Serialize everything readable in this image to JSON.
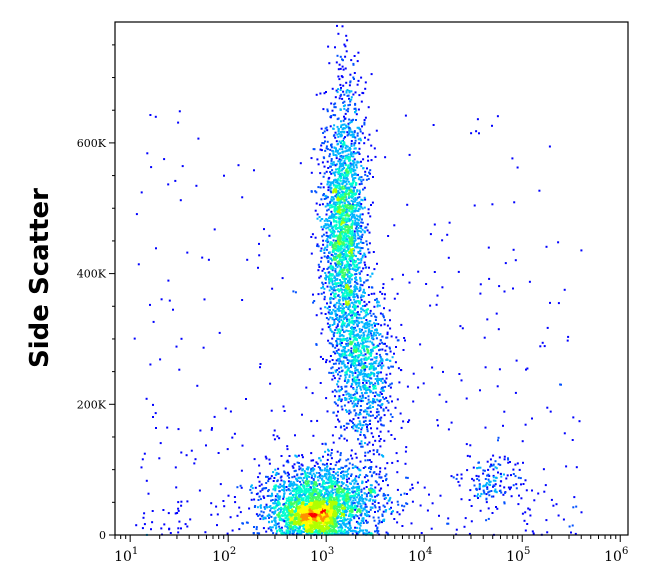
{
  "chart_data": {
    "type": "scatter",
    "title": "",
    "xlabel": "",
    "ylabel": "Side Scatter",
    "x_scale": "log",
    "xlim": [
      7,
      1200000
    ],
    "ylim": [
      0,
      785000
    ],
    "grid": false,
    "legend": "none",
    "x_ticks": [
      {
        "value": 10,
        "label": "10",
        "exp": "1"
      },
      {
        "value": 100,
        "label": "10",
        "exp": "2"
      },
      {
        "value": 1000,
        "label": "10",
        "exp": "3"
      },
      {
        "value": 10000,
        "label": "10",
        "exp": "4"
      },
      {
        "value": 100000,
        "label": "10",
        "exp": "5"
      },
      {
        "value": 1000000,
        "label": "10",
        "exp": "6"
      }
    ],
    "y_ticks": [
      {
        "value": 0,
        "label": "0"
      },
      {
        "value": 200000,
        "label": "200K"
      },
      {
        "value": 400000,
        "label": "400K"
      },
      {
        "value": 600000,
        "label": "600K"
      }
    ],
    "density_colormap": [
      "#00008b",
      "#0000ff",
      "#0050ff",
      "#00b4ff",
      "#00ffd0",
      "#40ff60",
      "#b0ff00",
      "#ffff00",
      "#ff9000",
      "#ff0000"
    ],
    "populations": [
      {
        "name": "",
        "x_center": 700,
        "y_center": 30000,
        "x_spread_decades": 0.18,
        "y_spread": 14000,
        "events": 1200
      },
      {
        "name": "",
        "x_center": 900,
        "y_center": 55000,
        "x_spread_decades": 0.32,
        "y_spread": 30000,
        "events": 1800
      },
      {
        "name": "",
        "x_center": 1500,
        "y_center": 460000,
        "x_spread_decades": 0.11,
        "y_spread": 110000,
        "events": 2400
      },
      {
        "name": "",
        "x_center": 2500,
        "y_center": 260000,
        "x_spread_decades": 0.14,
        "y_spread": 60000,
        "events": 900
      },
      {
        "name": "",
        "x_center": 50000,
        "y_center": 85000,
        "x_spread_decades": 0.15,
        "y_spread": 18000,
        "events": 140
      }
    ]
  }
}
